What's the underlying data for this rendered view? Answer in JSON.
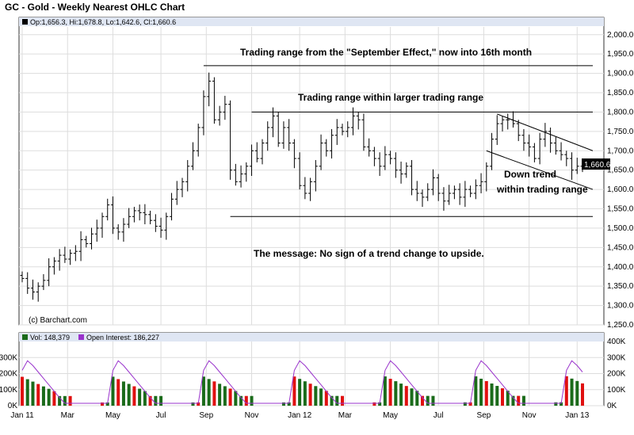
{
  "header": {
    "title": "GC - Gold - Weekly Nearest OHLC Chart",
    "ohlc": "Op:1,656.3, Hi:1,678.8, Lo:1,642.6, Cl:1,660.6",
    "copyright": "(c) Barchart.com"
  },
  "volume_header": {
    "vol": "Vol: 148,379",
    "oi": "Open Interest: 186,227"
  },
  "annotations": {
    "a1": "Trading range from the \"September Effect,\" now into 16th month",
    "a2": "Trading range within larger trading range",
    "a3_line1": "Down trend",
    "a3_line2": "within trading range",
    "a4": "The message:  No sign of a trend change to upside."
  },
  "last_price_label": "1,660.6",
  "colors": {
    "up": "#000000",
    "vol_up": "#1a6b1a",
    "vol_down": "#e01010",
    "oi": "#9933cc",
    "grid": "#cccccc",
    "panel_bg": "#dfe6f3"
  },
  "chart_data": [
    {
      "type": "ohlc",
      "title": "GC - Gold - Weekly Nearest OHLC Chart",
      "ylim": [
        1250,
        2020
      ],
      "y_ticks": [
        "1,250.0",
        "1,300.0",
        "1,350.0",
        "1,400.0",
        "1,450.0",
        "1,500.0",
        "1,550.0",
        "1,600.0",
        "1,650.0",
        "1,700.0",
        "1,750.0",
        "1,800.0",
        "1,850.0",
        "1,900.0",
        "1,950.0",
        "2,000.0"
      ],
      "x_ticks": [
        "Jan 11",
        "Mar",
        "May",
        "Jul",
        "Sep",
        "Nov",
        "Jan 12",
        "Mar",
        "May",
        "Jul",
        "Sep",
        "Nov",
        "Jan 13"
      ],
      "closes": [
        1370,
        1345,
        1335,
        1350,
        1365,
        1400,
        1415,
        1430,
        1420,
        1435,
        1440,
        1470,
        1460,
        1485,
        1500,
        1530,
        1560,
        1500,
        1490,
        1510,
        1530,
        1545,
        1540,
        1535,
        1520,
        1505,
        1495,
        1530,
        1575,
        1600,
        1620,
        1660,
        1700,
        1760,
        1840,
        1880,
        1780,
        1800,
        1820,
        1650,
        1620,
        1640,
        1660,
        1700,
        1680,
        1720,
        1760,
        1790,
        1720,
        1760,
        1720,
        1680,
        1610,
        1590,
        1620,
        1660,
        1720,
        1700,
        1740,
        1760,
        1750,
        1760,
        1790,
        1780,
        1710,
        1700,
        1680,
        1660,
        1690,
        1680,
        1650,
        1640,
        1660,
        1600,
        1590,
        1580,
        1600,
        1630,
        1590,
        1570,
        1590,
        1600,
        1580,
        1600,
        1590,
        1610,
        1620,
        1660,
        1730,
        1770,
        1780,
        1780,
        1770,
        1740,
        1720,
        1710,
        1680,
        1730,
        1750,
        1720,
        1700,
        1690,
        1680,
        1650,
        1660,
        1660.6
      ],
      "last_close": 1660.6,
      "trading_range_lines": [
        1920,
        1800,
        1530
      ],
      "down_trend_channel": "Nov–Jan 13"
    },
    {
      "type": "bar",
      "title": "Vol / Open Interest",
      "ylim": [
        0,
        400000
      ],
      "y_ticks_left": [
        "0K",
        "100K",
        "200K",
        "300K"
      ],
      "y_ticks_right": [
        "0K",
        "100K",
        "200K",
        "300K",
        "400K"
      ],
      "vol_up_hint": [
        false,
        false,
        false,
        false,
        false,
        false,
        false,
        false,
        false,
        false,
        false,
        false,
        true,
        true,
        true,
        true,
        true,
        true,
        true,
        true,
        true,
        true,
        true,
        true,
        true,
        true,
        true,
        true,
        true,
        true,
        true,
        true,
        true,
        true,
        true,
        true,
        false,
        false,
        false,
        false,
        false,
        false,
        false,
        false,
        false,
        false,
        false,
        false,
        true,
        true,
        true,
        true,
        true,
        true,
        true,
        true,
        true,
        true,
        true,
        true,
        true,
        true,
        true,
        true,
        false,
        false,
        false,
        false,
        false,
        false,
        false,
        false,
        false,
        false,
        false,
        false,
        true,
        true,
        true,
        true,
        true,
        true,
        true,
        true,
        true,
        true,
        true,
        true,
        true,
        true,
        true,
        true,
        true,
        true,
        false,
        false,
        false,
        false,
        false,
        false,
        false,
        false,
        false,
        false,
        false,
        true
      ]
    }
  ]
}
